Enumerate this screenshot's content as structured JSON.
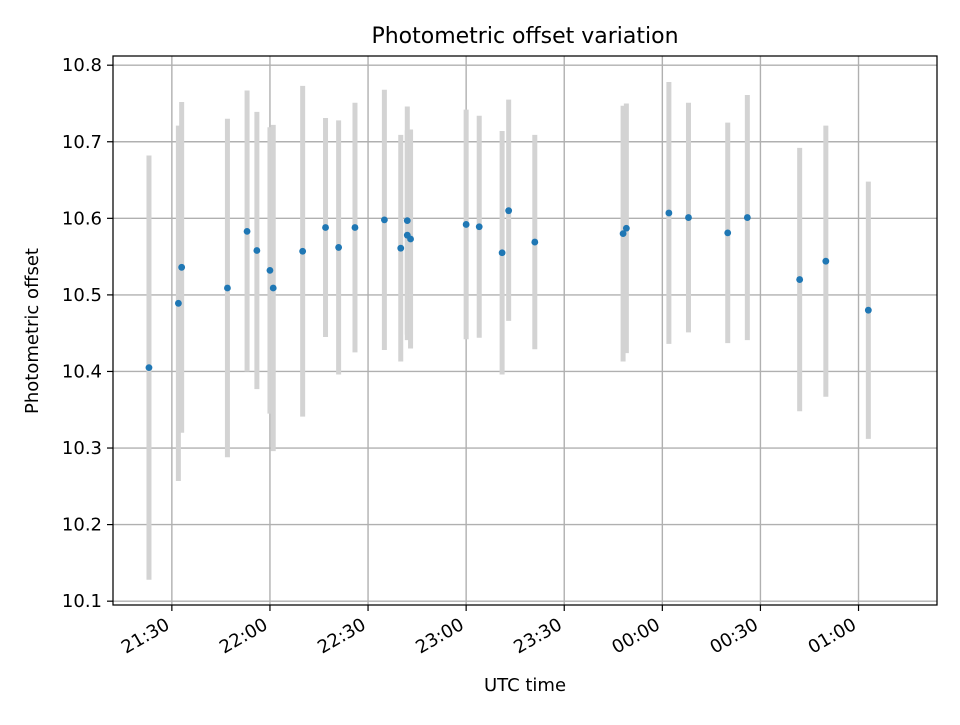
{
  "chart_data": {
    "type": "scatter",
    "title": "Photometric offset variation",
    "xlabel": "UTC time",
    "ylabel": "Photometric offset",
    "x_axis": {
      "type": "time",
      "range": [
        "21:12",
        "01:24"
      ],
      "ticks": [
        {
          "value": "21:30",
          "label": "21:30"
        },
        {
          "value": "22:00",
          "label": "22:00"
        },
        {
          "value": "22:30",
          "label": "22:30"
        },
        {
          "value": "23:00",
          "label": "23:00"
        },
        {
          "value": "23:30",
          "label": "23:30"
        },
        {
          "value": "00:00",
          "label": "00:00"
        },
        {
          "value": "00:30",
          "label": "00:30"
        },
        {
          "value": "01:00",
          "label": "01:00"
        }
      ]
    },
    "y_axis": {
      "range": [
        10.095,
        10.812
      ],
      "ticks": [
        10.1,
        10.2,
        10.3,
        10.4,
        10.5,
        10.6,
        10.7,
        10.8
      ],
      "tick_labels": [
        "10.1",
        "10.2",
        "10.3",
        "10.4",
        "10.5",
        "10.6",
        "10.7",
        "10.8"
      ]
    },
    "grid": true,
    "colors": {
      "points": "#1f77b4",
      "errorbars": "#d3d3d3",
      "grid": "#b0b0b0"
    },
    "series": [
      {
        "points": [
          {
            "x": "21:23",
            "y": 10.405,
            "lo": 10.128,
            "hi": 10.682
          },
          {
            "x": "21:32",
            "y": 10.489,
            "lo": 10.257,
            "hi": 10.721
          },
          {
            "x": "21:33",
            "y": 10.536,
            "lo": 10.32,
            "hi": 10.752
          },
          {
            "x": "21:47",
            "y": 10.509,
            "lo": 10.288,
            "hi": 10.73
          },
          {
            "x": "21:53",
            "y": 10.583,
            "lo": 10.4,
            "hi": 10.767
          },
          {
            "x": "21:56",
            "y": 10.558,
            "lo": 10.377,
            "hi": 10.739
          },
          {
            "x": "22:00",
            "y": 10.532,
            "lo": 10.345,
            "hi": 10.719
          },
          {
            "x": "22:01",
            "y": 10.509,
            "lo": 10.296,
            "hi": 10.722
          },
          {
            "x": "22:10",
            "y": 10.557,
            "lo": 10.341,
            "hi": 10.773
          },
          {
            "x": "22:17",
            "y": 10.588,
            "lo": 10.445,
            "hi": 10.731
          },
          {
            "x": "22:21",
            "y": 10.562,
            "lo": 10.396,
            "hi": 10.728
          },
          {
            "x": "22:26",
            "y": 10.588,
            "lo": 10.425,
            "hi": 10.751
          },
          {
            "x": "22:35",
            "y": 10.598,
            "lo": 10.428,
            "hi": 10.768
          },
          {
            "x": "22:40",
            "y": 10.561,
            "lo": 10.413,
            "hi": 10.709
          },
          {
            "x": "22:42",
            "y": 10.597,
            "lo": 10.448,
            "hi": 10.746
          },
          {
            "x": "22:42",
            "y": 10.578,
            "lo": 10.441,
            "hi": 10.715
          },
          {
            "x": "22:43",
            "y": 10.573,
            "lo": 10.43,
            "hi": 10.716
          },
          {
            "x": "23:00",
            "y": 10.592,
            "lo": 10.442,
            "hi": 10.742
          },
          {
            "x": "23:04",
            "y": 10.589,
            "lo": 10.444,
            "hi": 10.734
          },
          {
            "x": "23:11",
            "y": 10.555,
            "lo": 10.396,
            "hi": 10.714
          },
          {
            "x": "23:13",
            "y": 10.61,
            "lo": 10.466,
            "hi": 10.755
          },
          {
            "x": "23:21",
            "y": 10.569,
            "lo": 10.429,
            "hi": 10.709
          },
          {
            "x": "23:48",
            "y": 10.58,
            "lo": 10.413,
            "hi": 10.747
          },
          {
            "x": "23:49",
            "y": 10.587,
            "lo": 10.424,
            "hi": 10.75
          },
          {
            "x": "00:02",
            "y": 10.607,
            "lo": 10.436,
            "hi": 10.778
          },
          {
            "x": "00:08",
            "y": 10.601,
            "lo": 10.451,
            "hi": 10.751
          },
          {
            "x": "00:20",
            "y": 10.581,
            "lo": 10.437,
            "hi": 10.725
          },
          {
            "x": "00:26",
            "y": 10.601,
            "lo": 10.441,
            "hi": 10.761
          },
          {
            "x": "00:42",
            "y": 10.52,
            "lo": 10.348,
            "hi": 10.692
          },
          {
            "x": "00:50",
            "y": 10.544,
            "lo": 10.367,
            "hi": 10.721
          },
          {
            "x": "01:03",
            "y": 10.48,
            "lo": 10.312,
            "hi": 10.648
          }
        ]
      }
    ]
  }
}
